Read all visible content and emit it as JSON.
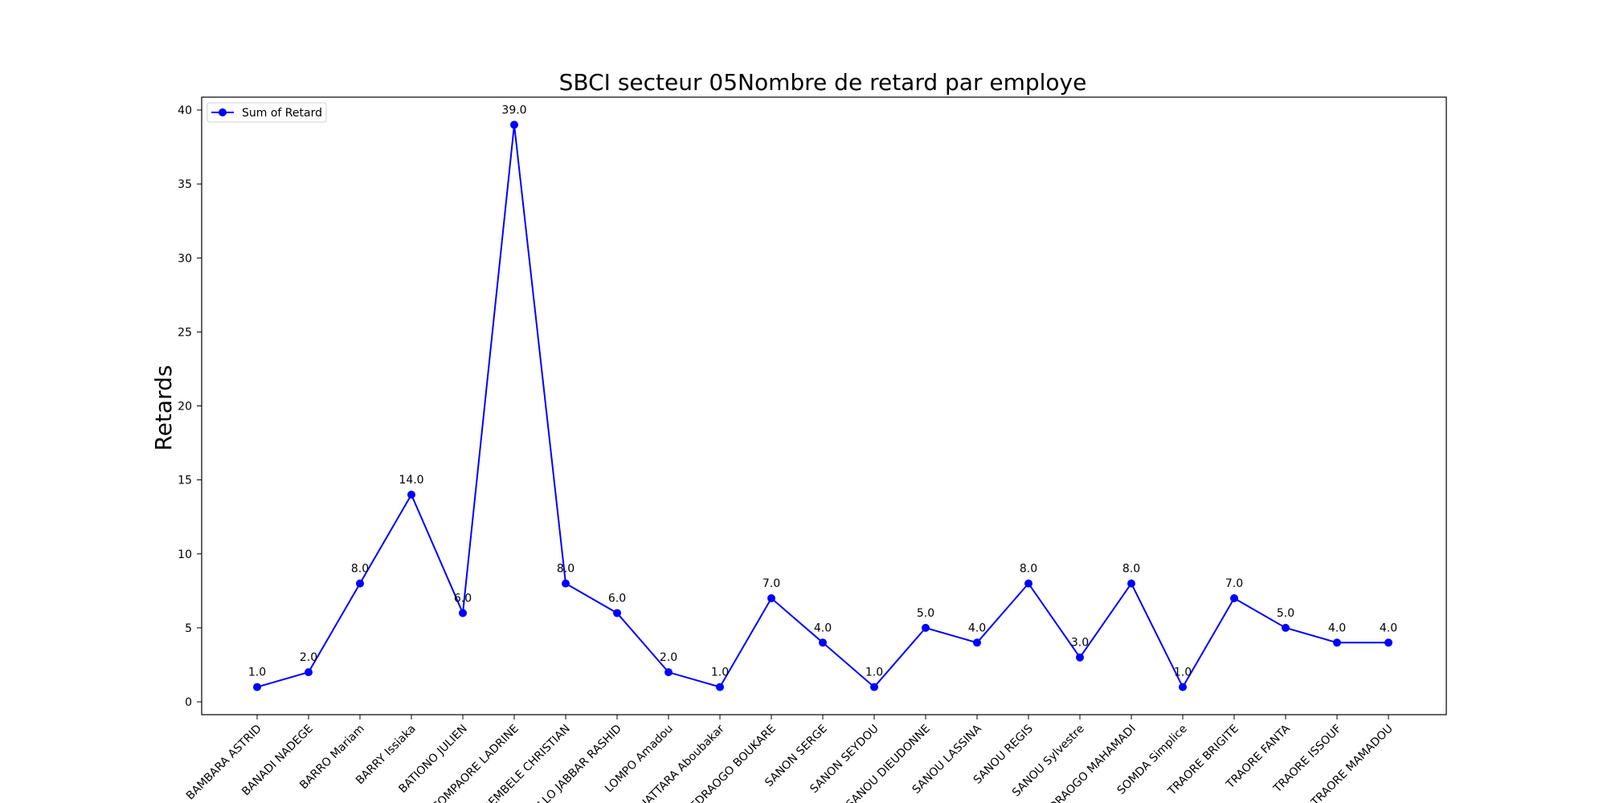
{
  "chart_data": {
    "type": "line",
    "title": "SBCI secteur 05Nombre de retard par employe",
    "xlabel": "",
    "ylabel": "Retards",
    "ylim": [
      0,
      40
    ],
    "yticks": [
      0,
      5,
      10,
      15,
      20,
      25,
      30,
      35,
      40
    ],
    "grid": false,
    "legend_position": "upper left",
    "categories": [
      "BAMBARA ASTRID",
      "BANADI NADEGE",
      "BARRO Mariam",
      "BARRY Issiaka",
      "BATIONO JULIEN",
      "COMPAORE LADRINE",
      "DEMBELE CHRISTIAN",
      "DOULLO JABBAR RASHID",
      "LOMPO Amadou",
      "OUATTARA Aboubakar",
      "OUEDRAOGO BOUKARE",
      "SANON SERGE",
      "SANON SEYDOU",
      "SANOU DIEUDONNE",
      "SANOU LASSINA",
      "SANOU REGIS",
      "SANOU Sylvestre",
      "OUEDRAOGO MAHAMADI",
      "SOMDA Simplice",
      "TRAORE BRIGITE",
      "TRAORE FANTA",
      "TRAORE ISSOUF",
      "TRAORE MAMADOU"
    ],
    "series": [
      {
        "name": "Sum of Retard",
        "color": "#0000ff",
        "marker": "circle",
        "values": [
          1,
          2,
          8,
          14,
          6,
          39,
          8,
          6,
          2,
          1,
          7,
          4,
          1,
          5,
          4,
          8,
          3,
          8,
          1,
          7,
          5,
          4,
          4
        ],
        "data_labels": [
          "1.0",
          "2.0",
          "8.0",
          "14.0",
          "6.0",
          "39.0",
          "8.0",
          "6.0",
          "2.0",
          "1.0",
          "7.0",
          "4.0",
          "1.0",
          "5.0",
          "4.0",
          "8.0",
          "3.0",
          "8.0",
          "1.0",
          "7.0",
          "5.0",
          "4.0",
          "4.0"
        ]
      }
    ]
  }
}
